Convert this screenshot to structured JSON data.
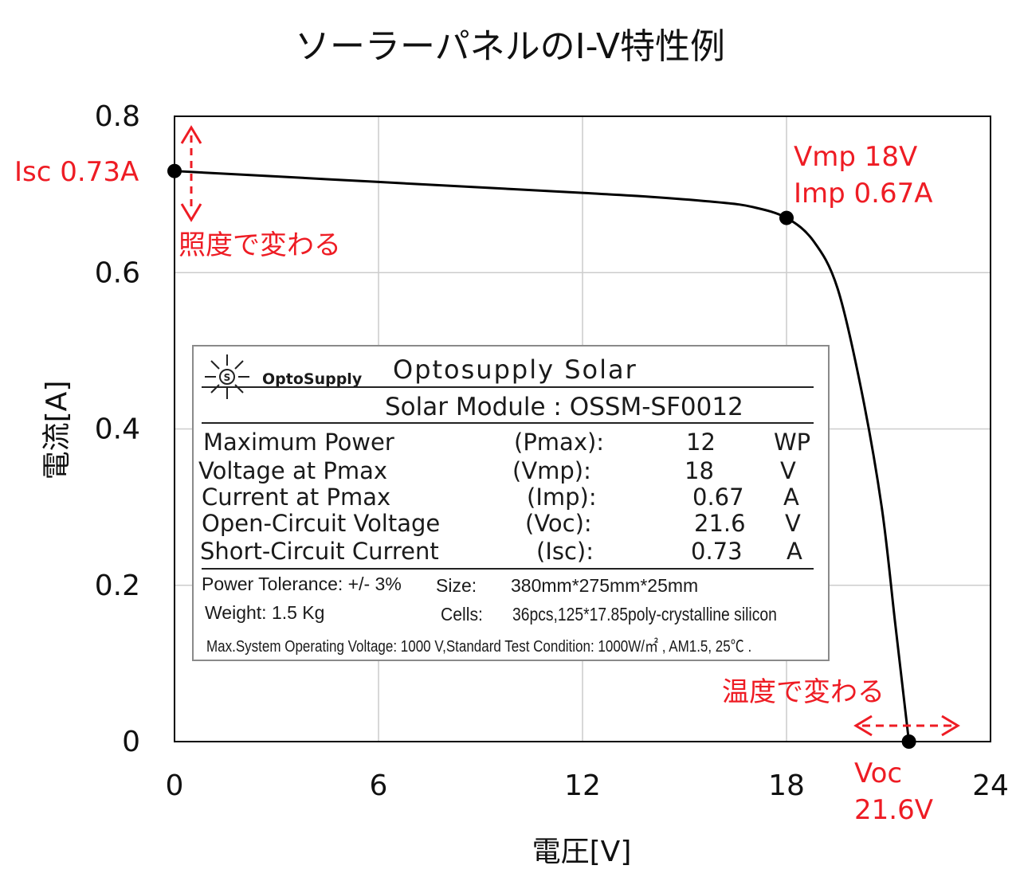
{
  "chart_data": {
    "type": "line",
    "title": "ソーラーパネルのI-V特性例",
    "xlabel": "電圧[V]",
    "ylabel": "電流[A]",
    "xlim": [
      0,
      24
    ],
    "ylim": [
      0,
      0.8
    ],
    "x_ticks": [
      "0",
      "6",
      "12",
      "18",
      "24"
    ],
    "y_ticks": [
      "0",
      "0.2",
      "0.4",
      "0.6",
      "0.8"
    ],
    "grid": true,
    "series": [
      {
        "x": [
          0,
          3,
          6,
          9,
          12,
          14,
          16,
          17,
          18,
          18.8,
          19.5,
          20.2,
          20.8,
          21.2,
          21.6
        ],
        "y": [
          0.73,
          0.723,
          0.716,
          0.709,
          0.702,
          0.697,
          0.69,
          0.684,
          0.67,
          0.64,
          0.58,
          0.45,
          0.3,
          0.15,
          0.0
        ]
      }
    ],
    "key_points": [
      {
        "x": 0,
        "y": 0.73
      },
      {
        "x": 18,
        "y": 0.67
      },
      {
        "x": 21.6,
        "y": 0.0
      }
    ],
    "annotations": {
      "isc": "Isc 0.73A",
      "vmp": "Vmp 18V",
      "imp": "Imp  0.67A",
      "illuminance_note": "照度で変わる",
      "temperature_note": "温度で変わる",
      "voc_label": "Voc",
      "voc_value": "21.6V"
    },
    "accent_color": "#ee1c24",
    "line_color": "#000000"
  },
  "nameplate": {
    "logo_icon": "optosupply-sun-logo",
    "logo_text": "OptoSupply",
    "brand": "Optosupply  Solar",
    "model": "Solar Module : OSSM-SF0012",
    "specs": [
      {
        "label": "Maximum Power",
        "symbol": "(Pmax):",
        "value": "12",
        "unit": "WP"
      },
      {
        "label": "Voltage at Pmax",
        "symbol": "(Vmp):",
        "value": "18",
        "unit": "V"
      },
      {
        "label": "Current at Pmax",
        "symbol": "(Imp):",
        "value": "0.67",
        "unit": "A"
      },
      {
        "label": "Open-Circuit Voltage",
        "symbol": "(Voc):",
        "value": "21.6",
        "unit": "V"
      },
      {
        "label": "Short-Circuit Current",
        "symbol": "(Isc):",
        "value": "0.73",
        "unit": "A"
      }
    ],
    "tolerance": "Power Tolerance:   +/- 3%",
    "size_label": "Size:",
    "size_value": "380mm*275mm*25mm",
    "weight": "Weight:  1.5 Kg",
    "cells_label": "Cells:",
    "cells_value": "36pcs,125*17.85poly-crystalline silicon",
    "system_line": "Max.System Operating Voltage:  1000 V,Standard Test Condition: 1000W/㎡ , AM1.5, 25℃ ."
  }
}
